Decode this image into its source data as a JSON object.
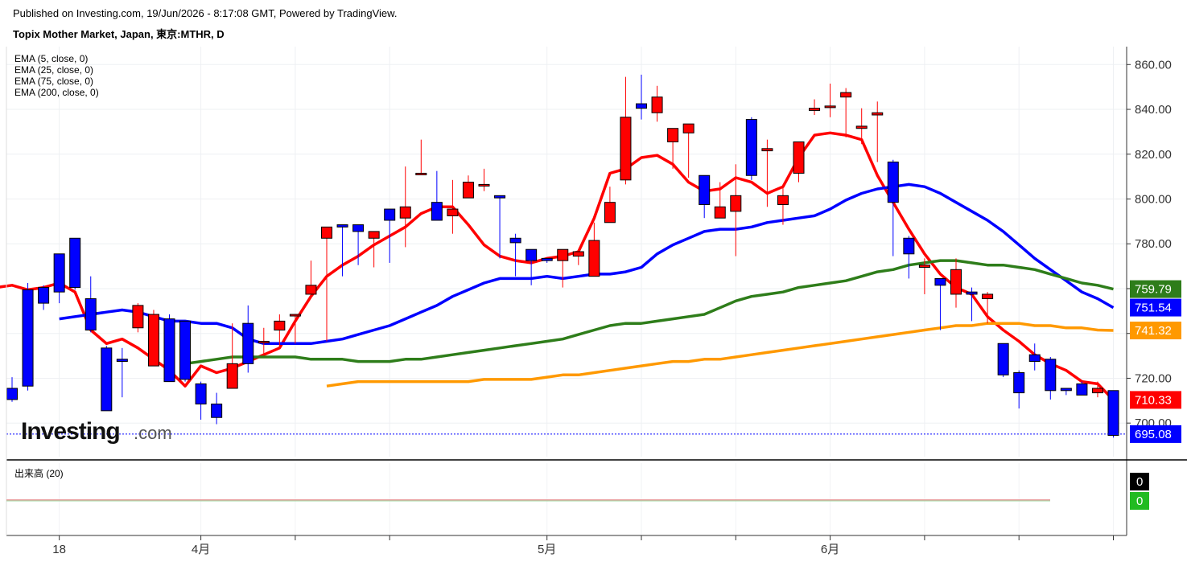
{
  "header": {
    "published": "Published on Investing.com, 19/Jun/2026 - 8:17:08 GMT, Powered by TradingView.",
    "symbol": "Topix Mother Market, Japan, 東京:MTHR, D"
  },
  "logo": {
    "main": "Investing",
    "suffix": ".com"
  },
  "volume_panel": {
    "label": "出来高 (20)",
    "tag_top": "0",
    "tag_bottom": "0"
  },
  "colors": {
    "up_candle": "#ff0000",
    "down_candle": "#0000ff",
    "ema5": "#ff0000",
    "ema25": "#0000ff",
    "ema75": "#2e7d1a",
    "ema200": "#ff9900",
    "last_price_line": "#0000ff"
  },
  "chart_data": {
    "type": "candlestick",
    "ylim": [
      685,
      868
    ],
    "y_ticks": [
      700,
      720,
      740,
      760,
      780,
      800,
      820,
      840,
      860
    ],
    "y_tick_labels": [
      "700.00",
      "720.00",
      "",
      "",
      "780.00",
      "800.00",
      "820.00",
      "840.00",
      "860.00"
    ],
    "x_labels": [
      {
        "i": 3,
        "label": "18"
      },
      {
        "i": 12,
        "label": "4月"
      },
      {
        "i": 34,
        "label": "5月"
      },
      {
        "i": 52,
        "label": "6月"
      }
    ],
    "x_extra_ticks": [
      18,
      24,
      40,
      46,
      58,
      64,
      70
    ],
    "candles": [
      [
        715.5,
        710.5,
        720.5,
        709.5
      ],
      [
        759.5,
        716.5,
        762.5,
        714.5
      ],
      [
        760.5,
        753.5,
        761.5,
        750.5
      ],
      [
        775.5,
        758.5,
        775.5,
        753.5
      ],
      [
        782.5,
        760.5,
        781.5,
        759.5
      ],
      [
        755.5,
        741.5,
        765.5,
        740.5
      ],
      [
        733.5,
        705.5,
        734.5,
        705.5
      ],
      [
        728.5,
        727.5,
        733.5,
        711.5
      ],
      [
        742.5,
        752.5,
        753.5,
        740.5
      ],
      [
        725.5,
        748.5,
        750.5,
        726.5
      ],
      [
        746.5,
        718.5,
        748.5,
        718.5
      ],
      [
        745.5,
        719.5,
        745.5,
        718.5
      ],
      [
        717.5,
        708.5,
        718.5,
        701.5
      ],
      [
        708.5,
        702.5,
        713.5,
        699.5
      ],
      [
        715.5,
        726.5,
        744.5,
        715.5
      ],
      [
        744.5,
        726.5,
        752.5,
        722.5
      ],
      [
        736.5,
        736.5,
        742.5,
        730.5
      ],
      [
        741.5,
        745.5,
        748.5,
        734.5
      ],
      [
        748.5,
        748.5,
        746.5,
        735.5
      ],
      [
        757.5,
        761.5,
        772.5,
        758.5
      ],
      [
        782.5,
        787.5,
        779.5,
        736.5
      ],
      [
        788.5,
        787.5,
        785.5,
        765.5
      ],
      [
        788.5,
        785.5,
        784.5,
        770.5
      ],
      [
        782.5,
        785.5,
        777.5,
        769.5
      ],
      [
        795.5,
        790.5,
        785.5,
        771.5
      ],
      [
        791.5,
        796.5,
        814.5,
        778.5
      ],
      [
        811.5,
        811.5,
        826.5,
        811.5
      ],
      [
        798.5,
        790.5,
        812.5,
        810.5
      ],
      [
        792.5,
        795.5,
        808.5,
        784.5
      ],
      [
        800.5,
        807.5,
        810.5,
        804.5
      ],
      [
        806.5,
        806.5,
        813.5,
        803.5
      ],
      [
        801.5,
        800.5,
        787.5,
        773.5
      ],
      [
        782.5,
        780.5,
        784.5,
        765.5
      ],
      [
        777.5,
        772.5,
        774.5,
        761.5
      ],
      [
        773.5,
        772.5,
        767.5,
        771.5
      ],
      [
        772.5,
        777.5,
        776.5,
        760.5
      ],
      [
        774.5,
        776.5,
        775.5,
        770.5
      ],
      [
        765.5,
        781.5,
        789.5,
        782.5
      ],
      [
        789.5,
        798.5,
        805.5,
        796.5
      ],
      [
        808.5,
        836.5,
        854.5,
        806.5
      ],
      [
        842.5,
        840.5,
        855.5,
        835.5
      ],
      [
        838.5,
        845.5,
        850.5,
        834.5
      ],
      [
        825.5,
        831.5,
        829.5,
        813.5
      ],
      [
        829.5,
        833.5,
        826.5,
        809.5
      ],
      [
        810.5,
        797.5,
        807.5,
        791.5
      ],
      [
        791.5,
        796.5,
        807.5,
        792.5
      ],
      [
        794.5,
        801.5,
        815.5,
        774.5
      ],
      [
        835.5,
        810.5,
        836.5,
        808.5
      ],
      [
        821.5,
        822.5,
        826.5,
        796.5
      ],
      [
        797.5,
        801.5,
        806.5,
        788.5
      ],
      [
        811.5,
        825.5,
        818.5,
        807.5
      ],
      [
        839.5,
        840.5,
        844.5,
        837.5
      ],
      [
        841.5,
        841.5,
        851.5,
        836.5
      ],
      [
        845.5,
        847.5,
        849.5,
        827.5
      ],
      [
        831.5,
        832.5,
        840.5,
        824.5
      ],
      [
        837.5,
        838.5,
        843.5,
        816.5
      ],
      [
        816.5,
        798.5,
        817.5,
        774.5
      ],
      [
        782.5,
        775.5,
        783.5,
        764.5
      ],
      [
        769.5,
        770.5,
        773.5,
        757.5
      ],
      [
        764.5,
        761.5,
        763.5,
        741.5
      ],
      [
        757.5,
        768.5,
        773.5,
        751.5
      ],
      [
        758.5,
        757.5,
        760.5,
        745.5
      ],
      [
        755.5,
        757.5,
        758.5,
        744.5
      ],
      [
        735.5,
        721.5,
        735.5,
        720.5
      ],
      [
        722.5,
        713.5,
        723.5,
        706.5
      ],
      [
        730.5,
        727.5,
        735.5,
        723.5
      ],
      [
        728.5,
        714.5,
        729.5,
        710.5
      ],
      [
        715.5,
        714.5,
        715.5,
        712.5
      ],
      [
        717.5,
        712.5,
        718.5,
        713.5
      ],
      [
        713.5,
        715.5,
        718.5,
        711.5
      ],
      [
        714.5,
        694.5,
        714.5,
        693.5
      ]
    ],
    "series": [
      {
        "name": "EMA (5, close, 0)",
        "color": "#ff0000",
        "values": [
          760.5,
          761.5,
          759.5,
          760.5,
          762.5,
          758.5,
          741.5,
          735.5,
          737.5,
          733.5,
          728.5,
          723.5,
          716.5,
          725.5,
          722.5,
          724.5,
          727.5,
          730.5,
          733.5,
          745.5,
          756.5,
          765.5,
          770.5,
          774.5,
          779.5,
          783.5,
          787.5,
          793.5,
          796.5,
          796.5,
          788.5,
          779.5,
          774.5,
          772.5,
          771.5,
          773.5,
          774.5,
          776.5,
          791.5,
          811.5,
          813.5,
          818.5,
          819.5,
          815.5,
          807.5,
          803.5,
          804.5,
          809.5,
          807.5,
          802.5,
          805.5,
          818.5,
          828.5,
          829.5,
          828.5,
          826.5,
          810.5,
          798.5,
          786.5,
          775.5,
          766.5,
          760.5,
          757.5,
          747.5,
          741.5,
          736.5,
          730.5,
          726.5,
          723.5,
          718.5,
          717.5,
          710.33
        ]
      },
      {
        "name": "EMA (25, close, 0)",
        "color": "#0000ff",
        "values": [
          746.5,
          747.5,
          748.5,
          749.5,
          750.5,
          749.5,
          747.5,
          745.5,
          745.5,
          744.5,
          744.5,
          742.5,
          737.5,
          735.5,
          735.5,
          735.5,
          735.5,
          736.5,
          737.5,
          739.5,
          741.5,
          743.5,
          746.5,
          749.5,
          752.5,
          756.5,
          759.5,
          762.5,
          764.5,
          764.5,
          764.5,
          765.5,
          764.5,
          765.5,
          766.5,
          766.5,
          767.5,
          769.5,
          775.5,
          779.5,
          782.5,
          785.5,
          786.5,
          786.5,
          787.5,
          789.5,
          790.5,
          791.5,
          792.5,
          795.5,
          799.5,
          802.5,
          804.5,
          805.5,
          806.5,
          805.5,
          802.5,
          798.5,
          794.5,
          790.5,
          785.5,
          779.5,
          773.5,
          768.5,
          763.5,
          758.5,
          755.5,
          751.54
        ]
      },
      {
        "name": "EMA (75, close, 0)",
        "color": "#2e7d1a",
        "values": [
          726.5,
          727.5,
          728.5,
          729.5,
          729.5,
          729.5,
          729.5,
          729.5,
          728.5,
          728.5,
          728.5,
          727.5,
          727.5,
          727.5,
          728.5,
          728.5,
          729.5,
          730.5,
          731.5,
          732.5,
          733.5,
          734.5,
          735.5,
          736.5,
          737.5,
          739.5,
          741.5,
          743.5,
          744.5,
          744.5,
          745.5,
          746.5,
          747.5,
          748.5,
          751.5,
          754.5,
          756.5,
          757.5,
          758.5,
          760.5,
          761.5,
          762.5,
          763.5,
          765.5,
          767.5,
          768.5,
          770.5,
          771.5,
          772.5,
          772.5,
          771.5,
          770.5,
          770.5,
          769.5,
          768.5,
          766.5,
          764.5,
          762.5,
          761.5,
          759.79
        ]
      },
      {
        "name": "EMA (200, close, 0)",
        "color": "#ff9900",
        "values": [
          716.5,
          717.5,
          718.5,
          718.5,
          718.5,
          718.5,
          718.5,
          718.5,
          718.5,
          718.5,
          719.5,
          719.5,
          719.5,
          719.5,
          720.5,
          721.5,
          721.5,
          722.5,
          723.5,
          724.5,
          725.5,
          726.5,
          727.5,
          727.5,
          728.5,
          728.5,
          729.5,
          730.5,
          731.5,
          732.5,
          733.5,
          734.5,
          735.5,
          736.5,
          737.5,
          738.5,
          739.5,
          740.5,
          741.5,
          742.5,
          743.5,
          743.5,
          744.5,
          744.5,
          744.5,
          743.5,
          743.5,
          742.5,
          742.5,
          741.5,
          741.32
        ]
      }
    ],
    "price_tags": [
      {
        "text": "759.79",
        "value": 759.79,
        "color": "#2e7d1a"
      },
      {
        "text": "751.54",
        "value": 751.54,
        "color": "#0000ff"
      },
      {
        "text": "741.32",
        "value": 741.32,
        "color": "#ff9900"
      },
      {
        "text": "710.33",
        "value": 710.33,
        "color": "#ff0000"
      },
      {
        "text": "695.08",
        "value": 695.08,
        "color": "#0000ff"
      }
    ],
    "last_price": 695.08
  }
}
